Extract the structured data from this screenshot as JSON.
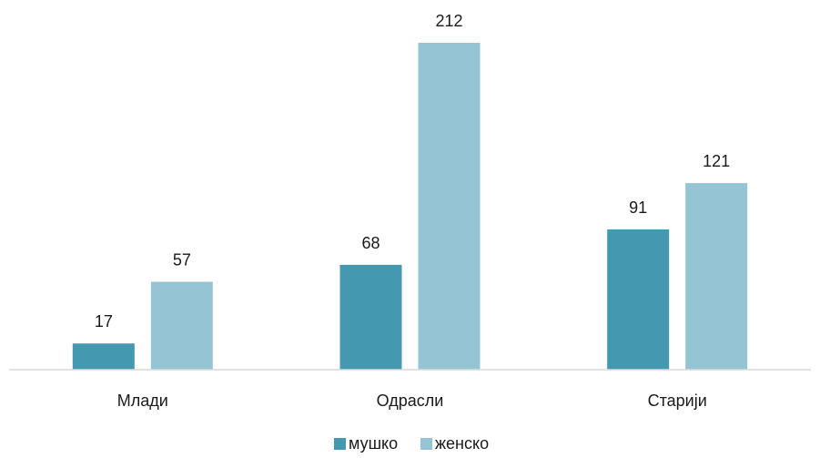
{
  "chart_data": {
    "type": "bar",
    "title": "",
    "xlabel": "",
    "ylabel": "",
    "categories": [
      "Млади",
      "Одрасли",
      "Старији"
    ],
    "series": [
      {
        "name": "мушко",
        "values": [
          17,
          68,
          91
        ],
        "color": "#4499b0"
      },
      {
        "name": "женско",
        "values": [
          57,
          212,
          121
        ],
        "color": "#95c4d5"
      }
    ],
    "ylim": [
      0,
      212
    ],
    "grid": false,
    "legend": "bottom-center",
    "data_labels": true
  }
}
